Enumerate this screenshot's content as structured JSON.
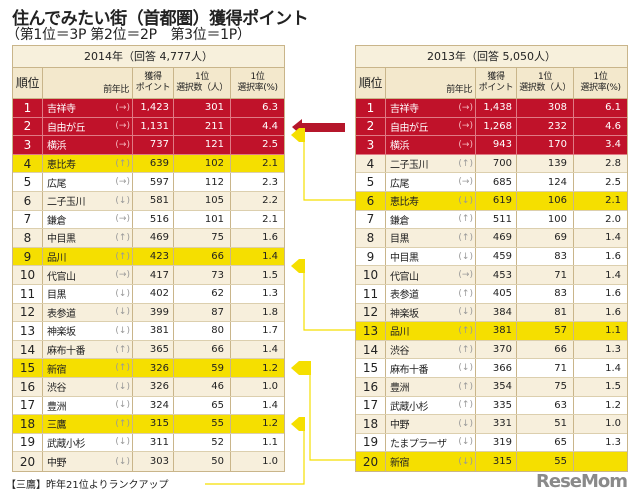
{
  "title": "住んでみたい街（首都圏）獲得ポイント",
  "subtitle": "（第1位＝3P 第2位＝2P　第3位＝1P）",
  "headers": {
    "rank": "順位",
    "trend": "前年比",
    "points": [
      "獲得",
      "ポイント"
    ],
    "count": [
      "1位",
      "選択数（人）"
    ],
    "rate": [
      "1位",
      "選択率(%)"
    ]
  },
  "note": "【三鷹】昨年21位よりランクアップ",
  "colors": {
    "top3": "#c0122a",
    "highlight": "#f5df00",
    "border": "#c9b58a"
  },
  "chart_data": {
    "type": "table",
    "tables": [
      {
        "caption": "2014年（回答 4,777人）",
        "highlight_ranks": [
          4,
          9,
          15,
          18
        ],
        "rows": [
          [
            "1",
            "吉祥寺",
            "(→)",
            "1,423",
            "301",
            "6.3"
          ],
          [
            "2",
            "自由が丘",
            "(→)",
            "1,131",
            "211",
            "4.4"
          ],
          [
            "3",
            "横浜",
            "(→)",
            "737",
            "121",
            "2.5"
          ],
          [
            "4",
            "恵比寿",
            "(↑)",
            "639",
            "102",
            "2.1"
          ],
          [
            "5",
            "広尾",
            "(→)",
            "597",
            "112",
            "2.3"
          ],
          [
            "6",
            "二子玉川",
            "(↓)",
            "581",
            "105",
            "2.2"
          ],
          [
            "7",
            "鎌倉",
            "(→)",
            "516",
            "101",
            "2.1"
          ],
          [
            "8",
            "中目黒",
            "(↑)",
            "469",
            "75",
            "1.6"
          ],
          [
            "9",
            "品川",
            "(↑)",
            "423",
            "66",
            "1.4"
          ],
          [
            "10",
            "代官山",
            "(→)",
            "417",
            "73",
            "1.5"
          ],
          [
            "11",
            "目黒",
            "(↓)",
            "402",
            "62",
            "1.3"
          ],
          [
            "12",
            "表参道",
            "(↓)",
            "399",
            "87",
            "1.8"
          ],
          [
            "13",
            "神楽坂",
            "(↓)",
            "381",
            "80",
            "1.7"
          ],
          [
            "14",
            "麻布十番",
            "(↑)",
            "365",
            "66",
            "1.4"
          ],
          [
            "15",
            "新宿",
            "(↑)",
            "326",
            "59",
            "1.2"
          ],
          [
            "16",
            "渋谷",
            "(↓)",
            "326",
            "46",
            "1.0"
          ],
          [
            "17",
            "豊洲",
            "(↓)",
            "324",
            "65",
            "1.4"
          ],
          [
            "18",
            "三鷹",
            "(↑)",
            "315",
            "55",
            "1.2"
          ],
          [
            "19",
            "武蔵小杉",
            "(↓)",
            "311",
            "52",
            "1.1"
          ],
          [
            "20",
            "中野",
            "(↓)",
            "303",
            "50",
            "1.0"
          ]
        ]
      },
      {
        "caption": "2013年（回答 5,050人）",
        "highlight_ranks": [
          6,
          13,
          20
        ],
        "rows": [
          [
            "1",
            "吉祥寺",
            "(→)",
            "1,438",
            "308",
            "6.1"
          ],
          [
            "2",
            "自由が丘",
            "(→)",
            "1,268",
            "232",
            "4.6"
          ],
          [
            "3",
            "横浜",
            "(→)",
            "943",
            "170",
            "3.4"
          ],
          [
            "4",
            "二子玉川",
            "(↑)",
            "700",
            "139",
            "2.8"
          ],
          [
            "5",
            "広尾",
            "(→)",
            "685",
            "124",
            "2.5"
          ],
          [
            "6",
            "恵比寿",
            "(↓)",
            "619",
            "106",
            "2.1"
          ],
          [
            "7",
            "鎌倉",
            "(↑)",
            "511",
            "100",
            "2.0"
          ],
          [
            "8",
            "目黒",
            "(↑)",
            "469",
            "69",
            "1.4"
          ],
          [
            "9",
            "中目黒",
            "(↓)",
            "459",
            "83",
            "1.6"
          ],
          [
            "10",
            "代官山",
            "(→)",
            "453",
            "71",
            "1.4"
          ],
          [
            "11",
            "表参道",
            "(↑)",
            "405",
            "83",
            "1.6"
          ],
          [
            "12",
            "神楽坂",
            "(↓)",
            "384",
            "81",
            "1.6"
          ],
          [
            "13",
            "品川",
            "(↑)",
            "381",
            "57",
            "1.1"
          ],
          [
            "14",
            "渋谷",
            "(↑)",
            "370",
            "66",
            "1.3"
          ],
          [
            "15",
            "麻布十番",
            "(↓)",
            "366",
            "71",
            "1.4"
          ],
          [
            "16",
            "豊洲",
            "(↑)",
            "354",
            "75",
            "1.5"
          ],
          [
            "17",
            "武蔵小杉",
            "(↑)",
            "335",
            "63",
            "1.2"
          ],
          [
            "18",
            "中野",
            "(↓)",
            "331",
            "51",
            "1.0"
          ],
          [
            "19",
            "たまプラーザ",
            "(↓)",
            "319",
            "65",
            "1.3"
          ],
          [
            "20",
            "新宿",
            "(↓)",
            "315",
            "55",
            ""
          ]
        ]
      }
    ]
  },
  "logo": "ReseMom"
}
